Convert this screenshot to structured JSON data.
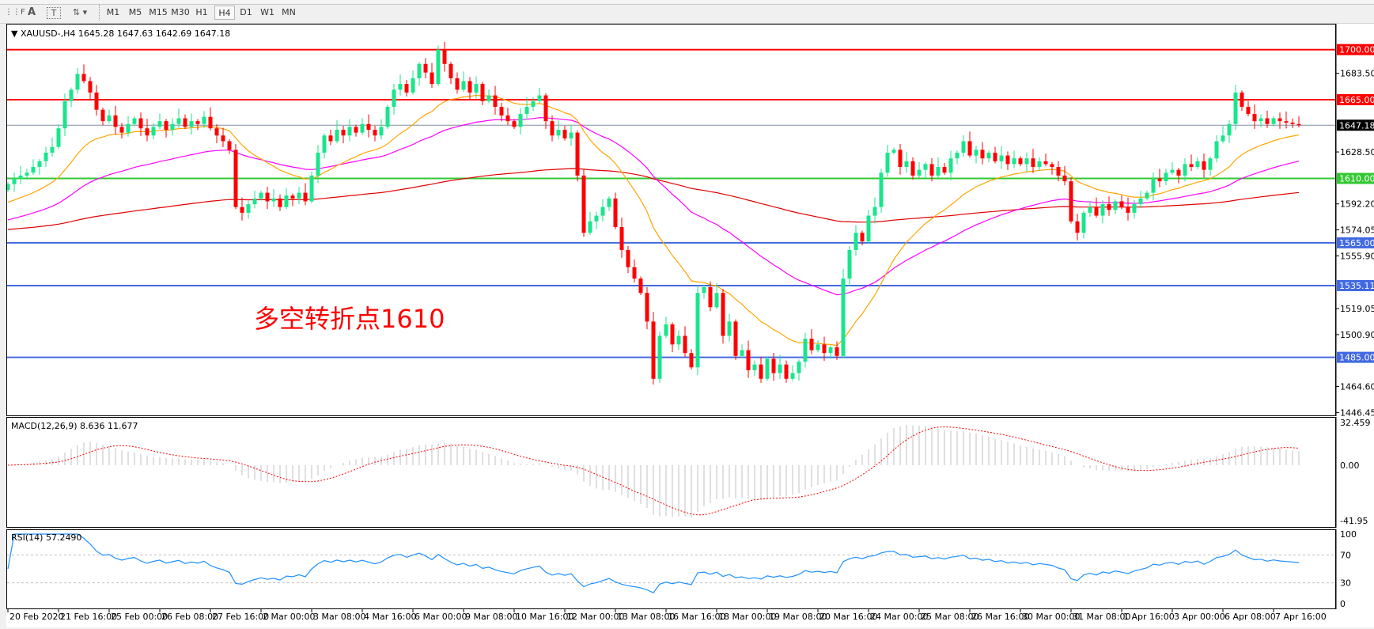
{
  "toolbar": {
    "icons": [
      "grid-icon",
      "text-a-icon",
      "text-label-icon",
      "arrows-icon"
    ],
    "timeframes": [
      "M1",
      "M5",
      "M15",
      "M30",
      "H1",
      "H4",
      "D1",
      "W1",
      "MN"
    ],
    "active_timeframe": "H4"
  },
  "chart_header": "XAUUSD-,H4  1645.28 1647.63 1642.69 1647.18",
  "annotation": "多空转折点1610",
  "macd_label": "MACD(12,26,9) 8.636 11.677",
  "rsi_label": "RSI(14) 57.2490",
  "colors": {
    "bull": "#19e68c",
    "bear": "#ff0000",
    "resistance": "#ff0000",
    "pivot": "#32c832",
    "support": "#4169e1",
    "ma_fast": "#ffa500",
    "ma_mid": "#ff00ff",
    "ma_slow": "#e00000",
    "rsi": "#1e90ff",
    "macd_hist": "#c0c0c0",
    "macd_signal": "#ff0000"
  },
  "chart_data": {
    "type": "candlestick",
    "symbol": "XAUUSD-",
    "timeframe": "H4",
    "last_price": "1647.18",
    "ylim": [
      1446.45,
      1701.65
    ],
    "price_ticks": [
      "1683.50",
      "1628.50",
      "1592.20",
      "1574.05",
      "1555.90",
      "1519.05",
      "1500.90",
      "1464.60",
      "1446.45"
    ],
    "horizontal_lines": [
      {
        "value": "1700.00",
        "kind": "resistance"
      },
      {
        "value": "1665.00",
        "kind": "resistance"
      },
      {
        "value": "1610.00",
        "kind": "pivot"
      },
      {
        "value": "1565.00",
        "kind": "support"
      },
      {
        "value": "1535.11",
        "kind": "support"
      },
      {
        "value": "1485.00",
        "kind": "support"
      }
    ],
    "closes": [
      1606,
      1610,
      1612,
      1614,
      1618,
      1622,
      1628,
      1632,
      1645,
      1664,
      1672,
      1683,
      1678,
      1670,
      1658,
      1650,
      1654,
      1646,
      1642,
      1648,
      1652,
      1645,
      1640,
      1646,
      1650,
      1644,
      1648,
      1652,
      1646,
      1650,
      1648,
      1653,
      1645,
      1640,
      1636,
      1630,
      1590,
      1586,
      1592,
      1596,
      1600,
      1594,
      1596,
      1590,
      1598,
      1596,
      1600,
      1594,
      1612,
      1628,
      1640,
      1636,
      1644,
      1640,
      1646,
      1642,
      1648,
      1644,
      1640,
      1646,
      1660,
      1672,
      1676,
      1670,
      1680,
      1690,
      1684,
      1676,
      1700,
      1690,
      1680,
      1672,
      1678,
      1670,
      1676,
      1664,
      1668,
      1660,
      1654,
      1650,
      1646,
      1655,
      1660,
      1664,
      1668,
      1650,
      1640,
      1644,
      1638,
      1642,
      1612,
      1572,
      1580,
      1584,
      1590,
      1596,
      1576,
      1560,
      1548,
      1540,
      1530,
      1510,
      1470,
      1500,
      1508,
      1494,
      1500,
      1488,
      1478,
      1530,
      1534,
      1520,
      1530,
      1500,
      1510,
      1486,
      1490,
      1476,
      1480,
      1470,
      1484,
      1474,
      1480,
      1470,
      1474,
      1482,
      1498,
      1490,
      1494,
      1488,
      1492,
      1486,
      1540,
      1560,
      1572,
      1566,
      1584,
      1590,
      1614,
      1628,
      1630,
      1618,
      1622,
      1612,
      1616,
      1620,
      1612,
      1618,
      1614,
      1624,
      1628,
      1636,
      1626,
      1630,
      1624,
      1628,
      1622,
      1626,
      1620,
      1624,
      1620,
      1624,
      1618,
      1622,
      1620,
      1618,
      1612,
      1608,
      1580,
      1572,
      1586,
      1590,
      1584,
      1592,
      1588,
      1594,
      1590,
      1586,
      1592,
      1596,
      1600,
      1610,
      1608,
      1614,
      1616,
      1612,
      1620,
      1618,
      1622,
      1616,
      1624,
      1636,
      1640,
      1648,
      1670,
      1660,
      1655,
      1650,
      1652,
      1648,
      1652,
      1650,
      1649,
      1648,
      1647.18
    ],
    "indicators": [
      "MA fast",
      "MA mid",
      "MA slow"
    ],
    "macd": {
      "params": "12,26,9",
      "main": 8.636,
      "signal": 11.677,
      "ylim": [
        -41.95,
        32.459
      ],
      "ticks": [
        "32.459",
        "0.00",
        "-41.95"
      ]
    },
    "rsi": {
      "period": 14,
      "value": 57.249,
      "levels": [
        30,
        70
      ],
      "ticks": [
        "100",
        "70",
        "30",
        "0"
      ]
    },
    "time_labels": [
      "20 Feb 2020",
      "21 Feb 16:00",
      "25 Feb 00:00",
      "26 Feb 08:00",
      "27 Feb 16:00",
      "2 Mar 00:00",
      "3 Mar 08:00",
      "4 Mar 16:00",
      "6 Mar 00:00",
      "9 Mar 08:00",
      "10 Mar 16:00",
      "12 Mar 00:00",
      "13 Mar 08:00",
      "16 Mar 16:00",
      "18 Mar 00:00",
      "19 Mar 08:00",
      "20 Mar 16:00",
      "24 Mar 00:00",
      "25 Mar 08:00",
      "26 Mar 16:00",
      "30 Mar 00:00",
      "31 Mar 08:00",
      "1 Apr 16:00",
      "3 Apr 00:00",
      "6 Apr 08:00",
      "7 Apr 16:00"
    ]
  }
}
